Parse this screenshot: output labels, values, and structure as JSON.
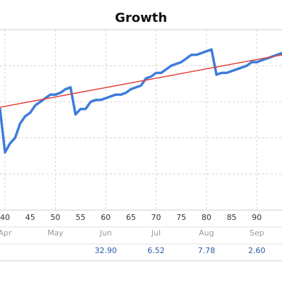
{
  "chart_data": {
    "type": "line",
    "title": "Growth",
    "xlabel": "",
    "ylabel": "",
    "x_ticks": [
      40,
      45,
      50,
      55,
      60,
      65,
      70,
      75,
      80,
      85,
      90
    ],
    "xlim": [
      39,
      95
    ],
    "ylim": [
      0,
      100
    ],
    "grid": true,
    "month_labels": [
      {
        "label": "Apr",
        "x": 40
      },
      {
        "label": "May",
        "x": 50
      },
      {
        "label": "Jun",
        "x": 60
      },
      {
        "label": "Jul",
        "x": 70
      },
      {
        "label": "Aug",
        "x": 80
      },
      {
        "label": "Sep",
        "x": 90
      }
    ],
    "monthly_values": [
      {
        "label": "32.90",
        "x": 60
      },
      {
        "label": "6.52",
        "x": 70
      },
      {
        "label": "7.78",
        "x": 80
      },
      {
        "label": "2.60",
        "x": 90
      }
    ],
    "series": [
      {
        "color": "#3d7ddb",
        "x": [
          39,
          40,
          41,
          42,
          43,
          44,
          45,
          46,
          47,
          48,
          49,
          50,
          51,
          52,
          53,
          54,
          55,
          56,
          57,
          58,
          59,
          60,
          61,
          62,
          63,
          64,
          65,
          66,
          67,
          68,
          69,
          70,
          71,
          72,
          73,
          74,
          75,
          76,
          77,
          78,
          79,
          80,
          81,
          82,
          83,
          84,
          85,
          86,
          87,
          88,
          89,
          90,
          91,
          92,
          93,
          94,
          95
        ],
        "values": [
          56,
          32,
          37,
          40,
          48,
          52,
          54,
          58,
          60,
          62,
          64,
          64,
          65,
          67,
          68,
          53,
          56,
          56,
          60,
          61,
          61,
          62,
          63,
          64,
          64,
          65,
          67,
          68,
          69,
          73,
          74,
          76,
          76,
          78,
          80,
          81,
          82,
          84,
          86,
          86,
          87,
          88,
          89,
          75,
          76,
          76,
          77,
          78,
          79,
          80,
          82,
          82,
          83,
          84,
          85,
          86,
          87
        ]
      },
      {
        "color": "#e0433a",
        "x": [
          39,
          95
        ],
        "values": [
          57,
          86
        ]
      }
    ]
  }
}
